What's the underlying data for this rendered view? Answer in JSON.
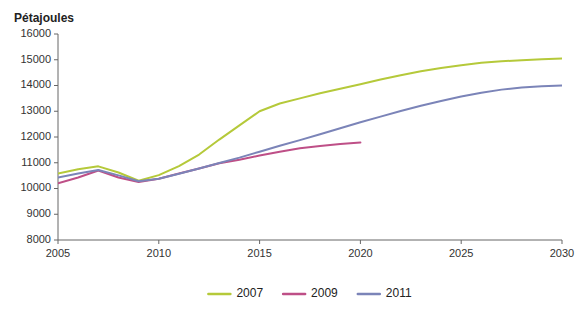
{
  "chart_data": {
    "type": "line",
    "ylabel": "Pétajoules",
    "x": [
      2005,
      2006,
      2007,
      2008,
      2009,
      2010,
      2011,
      2012,
      2013,
      2014,
      2015,
      2016,
      2017,
      2018,
      2019,
      2020,
      2021,
      2022,
      2023,
      2024,
      2025,
      2026,
      2027,
      2028,
      2029,
      2030
    ],
    "series": [
      {
        "name": "2007",
        "color": "#b5c93a",
        "values": [
          10580,
          10750,
          10860,
          10620,
          10300,
          10520,
          10870,
          11320,
          11900,
          12450,
          13000,
          13300,
          13500,
          13700,
          13870,
          14050,
          14230,
          14400,
          14550,
          14680,
          14790,
          14880,
          14940,
          14980,
          15020,
          15050
        ]
      },
      {
        "name": "2009",
        "color": "#be4f87",
        "values": [
          10200,
          10430,
          10700,
          10430,
          10250,
          10380,
          10580,
          10780,
          10980,
          11120,
          11280,
          11430,
          11560,
          11650,
          11730,
          11790,
          null,
          null,
          null,
          null,
          null,
          null,
          null,
          null,
          null,
          null
        ]
      },
      {
        "name": "2011",
        "color": "#7b84b8",
        "values": [
          10430,
          10580,
          10720,
          10510,
          10280,
          10380,
          10570,
          10780,
          10990,
          11200,
          11430,
          11660,
          11880,
          12110,
          12340,
          12570,
          12790,
          13010,
          13210,
          13400,
          13570,
          13720,
          13840,
          13920,
          13970,
          14000
        ]
      }
    ],
    "xlim": [
      2005,
      2030
    ],
    "ylim": [
      8000,
      16000
    ],
    "xticks": [
      2005,
      2010,
      2015,
      2020,
      2025,
      2030
    ],
    "yticks": [
      8000,
      9000,
      10000,
      11000,
      12000,
      13000,
      14000,
      15000,
      16000
    ],
    "grid": false,
    "legend": "bottom"
  }
}
